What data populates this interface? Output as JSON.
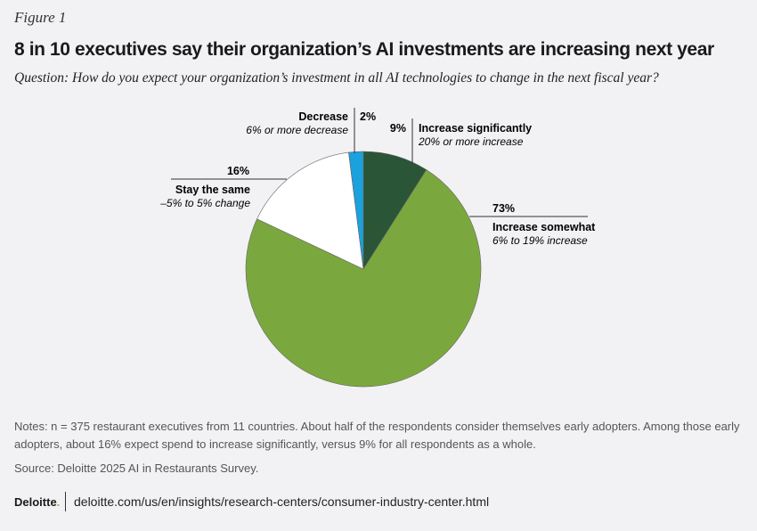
{
  "figure_label": "Figure 1",
  "title": "8 in 10 executives say their organization’s AI investments are increasing next year",
  "question": "Question: How do you expect your organization’s investment in all AI technologies to change in the next fiscal year?",
  "chart_data": {
    "type": "pie",
    "start": "top",
    "direction": "clockwise",
    "slices": [
      {
        "label": "Increase significantly",
        "sublabel": "20% or more increase",
        "value": 9,
        "value_label": "9%",
        "color": "#2a5536"
      },
      {
        "label": "Increase somewhat",
        "sublabel": "6% to 19% increase",
        "value": 73,
        "value_label": "73%",
        "color": "#7ba83e"
      },
      {
        "label": "Stay the same",
        "sublabel": "–5% to 5% change",
        "value": 16,
        "value_label": "16%",
        "color": "#ffffff"
      },
      {
        "label": "Decrease",
        "sublabel": "6% or more decrease",
        "value": 2,
        "value_label": "2%",
        "color": "#1ba1dd"
      }
    ]
  },
  "notes": "Notes: n = 375 restaurant executives from 11 countries. About half of the respondents consider themselves early adopters. Among those early adopters, about 16% expect spend to increase significantly, versus 9% for all respondents as a whole.",
  "source": "Source: Deloitte 2025 AI in Restaurants Survey.",
  "footer": {
    "logo": "Deloitte",
    "logo_dot": ".",
    "url": "deloitte.com/us/en/insights/research-centers/consumer-industry-center.html"
  }
}
